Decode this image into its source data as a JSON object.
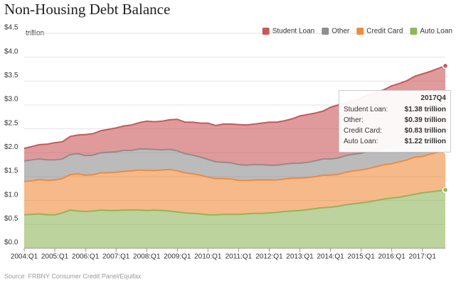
{
  "chart_data": {
    "type": "stacked_area",
    "title": "Non-Housing Debt Balance",
    "y_unit": "trillion",
    "source": "Source: FRBNY Consumer Credit Panel/Equifax",
    "categories": [
      "2004:Q1",
      null,
      null,
      null,
      "2005:Q1",
      null,
      null,
      null,
      "2006:Q1",
      null,
      null,
      null,
      "2007:Q1",
      null,
      null,
      null,
      "2008:Q1",
      null,
      null,
      null,
      "2009:Q1",
      null,
      null,
      null,
      "2010:Q1",
      null,
      null,
      null,
      "2011:Q1",
      null,
      null,
      null,
      "2012:Q1",
      null,
      null,
      null,
      "2013:Q1",
      null,
      null,
      null,
      "2014:Q1",
      null,
      null,
      null,
      "2015:Q1",
      null,
      null,
      null,
      "2016:Q1",
      null,
      null,
      null,
      "2017:Q1",
      null,
      null,
      null
    ],
    "series": [
      {
        "name": "Student Loan",
        "color": "#c9585a",
        "values": [
          0.26,
          0.28,
          0.3,
          0.33,
          0.36,
          0.36,
          0.38,
          0.39,
          0.44,
          0.45,
          0.46,
          0.48,
          0.5,
          0.51,
          0.53,
          0.55,
          0.58,
          0.58,
          0.6,
          0.62,
          0.66,
          0.66,
          0.69,
          0.71,
          0.76,
          0.76,
          0.8,
          0.81,
          0.84,
          0.84,
          0.85,
          0.87,
          0.9,
          0.9,
          0.91,
          0.93,
          0.99,
          1.0,
          1.0,
          1.0,
          1.08,
          1.11,
          1.1,
          1.12,
          1.16,
          1.19,
          1.19,
          1.2,
          1.26,
          1.26,
          1.28,
          1.3,
          1.34,
          1.34,
          1.36,
          1.38
        ]
      },
      {
        "name": "Other",
        "color": "#8e8e8e",
        "values": [
          0.43,
          0.44,
          0.43,
          0.43,
          0.42,
          0.41,
          0.42,
          0.42,
          0.41,
          0.41,
          0.42,
          0.43,
          0.43,
          0.44,
          0.43,
          0.44,
          0.45,
          0.44,
          0.42,
          0.42,
          0.42,
          0.4,
          0.39,
          0.38,
          0.37,
          0.35,
          0.34,
          0.34,
          0.33,
          0.32,
          0.32,
          0.32,
          0.31,
          0.31,
          0.31,
          0.31,
          0.31,
          0.32,
          0.33,
          0.34,
          0.34,
          0.34,
          0.35,
          0.35,
          0.35,
          0.36,
          0.36,
          0.37,
          0.37,
          0.38,
          0.38,
          0.39,
          0.39,
          0.39,
          0.39,
          0.39
        ]
      },
      {
        "name": "Credit Card",
        "color": "#f08a3c",
        "values": [
          0.7,
          0.7,
          0.72,
          0.72,
          0.73,
          0.72,
          0.74,
          0.78,
          0.76,
          0.76,
          0.78,
          0.79,
          0.8,
          0.81,
          0.82,
          0.84,
          0.84,
          0.83,
          0.85,
          0.87,
          0.86,
          0.84,
          0.83,
          0.81,
          0.79,
          0.76,
          0.75,
          0.74,
          0.71,
          0.7,
          0.7,
          0.7,
          0.69,
          0.68,
          0.68,
          0.69,
          0.68,
          0.67,
          0.67,
          0.68,
          0.67,
          0.67,
          0.68,
          0.69,
          0.69,
          0.7,
          0.71,
          0.72,
          0.72,
          0.74,
          0.75,
          0.78,
          0.76,
          0.79,
          0.81,
          0.83
        ]
      },
      {
        "name": "Auto Loan",
        "color": "#8fb65c",
        "values": [
          0.7,
          0.71,
          0.72,
          0.7,
          0.7,
          0.74,
          0.8,
          0.78,
          0.77,
          0.78,
          0.8,
          0.79,
          0.79,
          0.8,
          0.8,
          0.8,
          0.79,
          0.8,
          0.79,
          0.78,
          0.76,
          0.74,
          0.73,
          0.72,
          0.7,
          0.7,
          0.71,
          0.71,
          0.71,
          0.72,
          0.73,
          0.73,
          0.74,
          0.75,
          0.77,
          0.78,
          0.79,
          0.81,
          0.83,
          0.85,
          0.86,
          0.88,
          0.91,
          0.93,
          0.95,
          0.97,
          1.0,
          1.03,
          1.05,
          1.07,
          1.1,
          1.13,
          1.16,
          1.18,
          1.2,
          1.22
        ]
      }
    ],
    "ylim": [
      0,
      4.5
    ],
    "yticks": [
      {
        "value": 0,
        "label": "$0.0"
      },
      {
        "value": 0.5,
        "label": "$0.5"
      },
      {
        "value": 1,
        "label": "$1.0"
      },
      {
        "value": 1.5,
        "label": "$1.5"
      },
      {
        "value": 2,
        "label": "$2.0"
      },
      {
        "value": 2.5,
        "label": "$2.5"
      },
      {
        "value": 3,
        "label": "$3.0"
      },
      {
        "value": 3.5,
        "label": "$3.5"
      },
      {
        "value": 4,
        "label": "$4.0"
      },
      {
        "value": 4.5,
        "label": "$4.5"
      }
    ],
    "grid": true,
    "legend": "top-right",
    "tooltip": {
      "title": "2017Q4",
      "rows": [
        {
          "label": "Student Loan:",
          "value": "$1.38 trillion"
        },
        {
          "label": "Other:",
          "value": "$0.39 trillion"
        },
        {
          "label": "Credit Card:",
          "value": "$0.83 trillion"
        },
        {
          "label": "Auto Loan:",
          "value": "$1.22 trillion"
        }
      ]
    }
  }
}
